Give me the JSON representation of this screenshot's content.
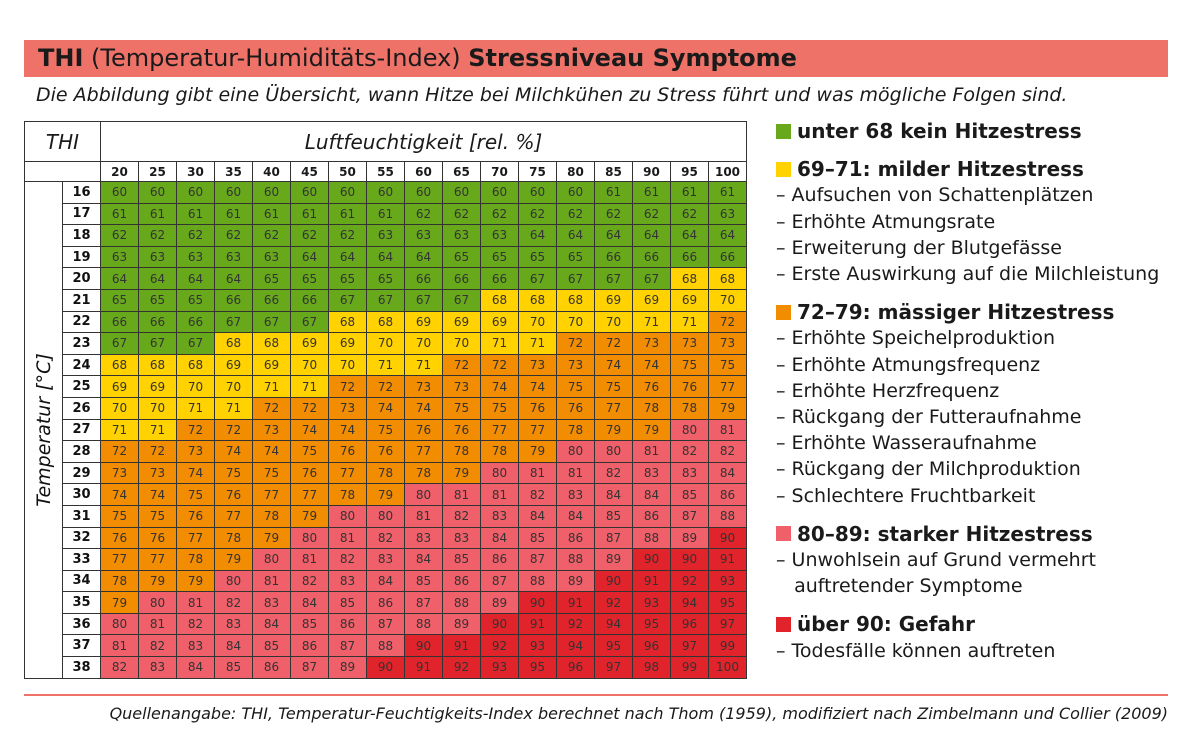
{
  "title": {
    "bold1": "THI",
    "normal": " (Temperatur-Humiditäts-Index) ",
    "bold2": "Stressniveau Symptome"
  },
  "subtitle": "Die Abbildung gibt eine Übersicht, wann Hitze bei Milchkühen zu Stress führt und was mögliche Folgen sind.",
  "colors": {
    "green": "#68a91c",
    "yellow": "#ffd200",
    "orange": "#f28c00",
    "pink": "#f0606a",
    "red": "#e1242b",
    "title_bg": "#ee7268"
  },
  "table": {
    "corner_label": "THI",
    "humidity_label": "Luftfeuchtigkeit [rel. %]",
    "temperature_label": "Temperatur [°C]",
    "humidity": [
      "20",
      "25",
      "30",
      "35",
      "40",
      "45",
      "50",
      "55",
      "60",
      "65",
      "70",
      "75",
      "80",
      "85",
      "90",
      "95",
      "100"
    ],
    "rows": [
      {
        "t": "16",
        "v": [
          60,
          60,
          60,
          60,
          60,
          60,
          60,
          60,
          60,
          60,
          60,
          60,
          60,
          61,
          61,
          61,
          61
        ]
      },
      {
        "t": "17",
        "v": [
          61,
          61,
          61,
          61,
          61,
          61,
          61,
          61,
          62,
          62,
          62,
          62,
          62,
          62,
          62,
          62,
          63
        ]
      },
      {
        "t": "18",
        "v": [
          62,
          62,
          62,
          62,
          62,
          62,
          62,
          63,
          63,
          63,
          63,
          64,
          64,
          64,
          64,
          64,
          64
        ]
      },
      {
        "t": "19",
        "v": [
          63,
          63,
          63,
          63,
          63,
          64,
          64,
          64,
          64,
          65,
          65,
          65,
          65,
          66,
          66,
          66,
          66
        ]
      },
      {
        "t": "20",
        "v": [
          64,
          64,
          64,
          64,
          65,
          65,
          65,
          65,
          66,
          66,
          66,
          67,
          67,
          67,
          67,
          68,
          68
        ]
      },
      {
        "t": "21",
        "v": [
          65,
          65,
          65,
          66,
          66,
          66,
          67,
          67,
          67,
          67,
          68,
          68,
          68,
          69,
          69,
          69,
          70
        ]
      },
      {
        "t": "22",
        "v": [
          66,
          66,
          66,
          67,
          67,
          67,
          68,
          68,
          69,
          69,
          69,
          70,
          70,
          70,
          71,
          71,
          72
        ]
      },
      {
        "t": "23",
        "v": [
          67,
          67,
          67,
          68,
          68,
          69,
          69,
          70,
          70,
          70,
          71,
          71,
          72,
          72,
          73,
          73,
          73
        ]
      },
      {
        "t": "24",
        "v": [
          68,
          68,
          68,
          69,
          69,
          70,
          70,
          71,
          71,
          72,
          72,
          73,
          73,
          74,
          74,
          75,
          75
        ]
      },
      {
        "t": "25",
        "v": [
          69,
          69,
          70,
          70,
          71,
          71,
          72,
          72,
          73,
          73,
          74,
          74,
          75,
          75,
          76,
          76,
          77
        ]
      },
      {
        "t": "26",
        "v": [
          70,
          70,
          71,
          71,
          72,
          72,
          73,
          74,
          74,
          75,
          75,
          76,
          76,
          77,
          78,
          78,
          79
        ]
      },
      {
        "t": "27",
        "v": [
          71,
          71,
          72,
          72,
          73,
          74,
          74,
          75,
          76,
          76,
          77,
          77,
          78,
          79,
          79,
          80,
          81
        ]
      },
      {
        "t": "28",
        "v": [
          72,
          72,
          73,
          74,
          74,
          75,
          76,
          76,
          77,
          78,
          78,
          79,
          80,
          80,
          81,
          82,
          82
        ]
      },
      {
        "t": "29",
        "v": [
          73,
          73,
          74,
          75,
          75,
          76,
          77,
          78,
          78,
          79,
          80,
          81,
          81,
          82,
          83,
          83,
          84
        ]
      },
      {
        "t": "30",
        "v": [
          74,
          74,
          75,
          76,
          77,
          77,
          78,
          79,
          80,
          81,
          81,
          82,
          83,
          84,
          84,
          85,
          86
        ]
      },
      {
        "t": "31",
        "v": [
          75,
          75,
          76,
          77,
          78,
          79,
          80,
          80,
          81,
          82,
          83,
          84,
          84,
          85,
          86,
          87,
          88
        ]
      },
      {
        "t": "32",
        "v": [
          76,
          76,
          77,
          78,
          79,
          80,
          81,
          82,
          83,
          83,
          84,
          85,
          86,
          87,
          88,
          89,
          90
        ]
      },
      {
        "t": "33",
        "v": [
          77,
          77,
          78,
          79,
          80,
          81,
          82,
          83,
          84,
          85,
          86,
          87,
          88,
          89,
          90,
          90,
          91
        ]
      },
      {
        "t": "34",
        "v": [
          78,
          79,
          79,
          80,
          81,
          82,
          83,
          84,
          85,
          86,
          87,
          88,
          89,
          90,
          91,
          92,
          93
        ]
      },
      {
        "t": "35",
        "v": [
          79,
          80,
          81,
          82,
          83,
          84,
          85,
          86,
          87,
          88,
          89,
          90,
          91,
          92,
          93,
          94,
          95
        ]
      },
      {
        "t": "36",
        "v": [
          80,
          81,
          82,
          83,
          84,
          85,
          86,
          87,
          88,
          89,
          90,
          91,
          92,
          94,
          95,
          96,
          97
        ]
      },
      {
        "t": "37",
        "v": [
          81,
          82,
          83,
          84,
          85,
          86,
          87,
          88,
          90,
          91,
          92,
          93,
          94,
          95,
          96,
          97,
          99
        ]
      },
      {
        "t": "38",
        "v": [
          82,
          83,
          84,
          85,
          86,
          87,
          89,
          90,
          91,
          92,
          93,
          95,
          96,
          97,
          98,
          99,
          100
        ]
      }
    ]
  },
  "legend": [
    {
      "color": "green",
      "heading": "unter 68 kein Hitzestress",
      "items": []
    },
    {
      "color": "yellow",
      "heading": "69–71: milder Hitzestress",
      "items": [
        "– Aufsuchen von Schattenplätzen",
        "– Erhöhte Atmungsrate",
        "– Erweiterung der Blutgefässe",
        "– Erste Auswirkung auf die Milchleistung"
      ]
    },
    {
      "color": "orange",
      "heading": "72–79: mässiger Hitzestress",
      "items": [
        "– Erhöhte Speichelproduktion",
        "– Erhöhte Atmungsfrequenz",
        "– Erhöhte Herzfrequenz",
        "– Rückgang der Futteraufnahme",
        "– Erhöhte Wasseraufnahme",
        "– Rückgang der Milchproduktion",
        "– Schlechtere Fruchtbarkeit"
      ]
    },
    {
      "color": "pink",
      "heading": "80–89: starker Hitzestress",
      "items": [
        "– Unwohlsein auf Grund vermehrt",
        "   auftretender Symptome"
      ]
    },
    {
      "color": "red",
      "heading": "über 90: Gefahr",
      "items": [
        "– Todesfälle können auftreten"
      ]
    }
  ],
  "source": "Quellenangabe: THI, Temperatur-Feuchtigkeits-Index berechnet nach Thom (1959), modifiziert nach Zimbelmann und Collier (2009)"
}
